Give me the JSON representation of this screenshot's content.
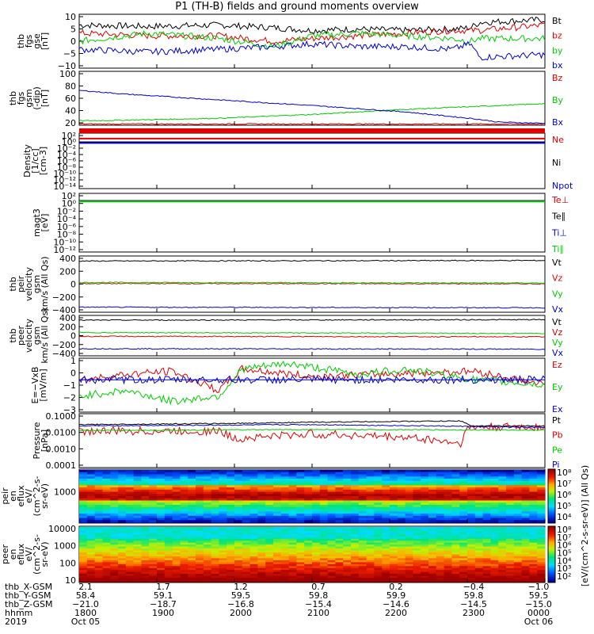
{
  "title": "P1 (TH-B) fields and ground moments overview",
  "colors": {
    "black": "#000000",
    "red": "#e00000",
    "green": "#00cc00",
    "blue": "#0000cc"
  },
  "chart_data": [
    {
      "type": "line",
      "panel": "bt-fgs",
      "ylabel": [
        "thb",
        "fgs",
        "gse",
        "[nT]"
      ],
      "ylim": [
        -10,
        10
      ],
      "yticks": [
        "10",
        "5",
        "0",
        "−5",
        "−10"
      ],
      "series": [
        {
          "name": "Bt",
          "color": "#000000",
          "x": [
            0,
            0.15,
            0.3,
            0.42,
            0.5,
            0.6,
            0.7,
            0.8,
            0.84,
            0.86,
            1.0
          ],
          "y": [
            6,
            5.5,
            6,
            5,
            4,
            4.5,
            4,
            4.5,
            5,
            7,
            8
          ]
        },
        {
          "name": "bz",
          "color": "#e00000",
          "x": [
            0,
            0.15,
            0.3,
            0.42,
            0.5,
            0.6,
            0.7,
            0.8,
            0.84,
            0.86,
            1.0
          ],
          "y": [
            3,
            2,
            2,
            0,
            1,
            2,
            3,
            4,
            4,
            4,
            6
          ]
        },
        {
          "name": "by",
          "color": "#00cc00",
          "x": [
            0,
            0.15,
            0.3,
            0.42,
            0.5,
            0.6,
            0.7,
            0.8,
            0.84,
            0.86,
            1.0
          ],
          "y": [
            0,
            3,
            1,
            -2,
            2,
            3,
            2,
            1,
            0,
            1,
            1
          ]
        },
        {
          "name": "bx",
          "color": "#0000cc",
          "x": [
            0,
            0.15,
            0.3,
            0.42,
            0.5,
            0.6,
            0.7,
            0.8,
            0.84,
            0.86,
            1.0
          ],
          "y": [
            -3,
            -4,
            -3,
            -2,
            -1,
            -2,
            -2,
            -3,
            -1,
            -6,
            -5
          ]
        }
      ]
    },
    {
      "type": "line",
      "panel": "b-gsm",
      "ylabel": [
        "thb",
        "fgs",
        "gsm",
        "(-dip)",
        "[nT]"
      ],
      "ylim": [
        15,
        100
      ],
      "yticks": [
        "100",
        "80",
        "60",
        "40",
        "20"
      ],
      "series": [
        {
          "name": "Bz",
          "color": "#e00000",
          "x": [
            0,
            1
          ],
          "y": [
            17,
            17
          ]
        },
        {
          "name": "By",
          "color": "#00cc00",
          "x": [
            0,
            0.1,
            0.3,
            0.5,
            0.7,
            0.9,
            1.0
          ],
          "y": [
            22,
            23,
            26,
            32,
            40,
            46,
            49
          ]
        },
        {
          "name": "Bx",
          "color": "#0000cc",
          "x": [
            0,
            0.1,
            0.3,
            0.5,
            0.7,
            0.85,
            0.9,
            1.0
          ],
          "y": [
            70,
            64,
            55,
            46,
            36,
            25,
            20,
            18
          ]
        }
      ]
    },
    {
      "type": "line",
      "panel": "density",
      "ylabel": [
        "Density",
        "[1/cc]",
        "[cm-3]"
      ],
      "log": true,
      "yticks": [
        "10²",
        "10⁰",
        "10⁻²",
        "10⁻⁴",
        "10⁻⁶",
        "10⁻⁸",
        "10⁻¹⁰",
        "10⁻¹²",
        "10⁻¹⁴"
      ],
      "series": [
        {
          "name": "Ne",
          "color": "#e00000",
          "x": [
            0,
            1
          ],
          "y": [
            6.5,
            6.5
          ]
        },
        {
          "name": "Ni",
          "color": "#000000",
          "x": [
            0,
            1
          ],
          "y": [
            0.5,
            0.5
          ]
        },
        {
          "name": "Npot",
          "color": "#0000cc",
          "x": [
            0,
            1
          ],
          "y": [
            0.3,
            0.3
          ]
        }
      ]
    },
    {
      "type": "line",
      "panel": "temperature",
      "ylabel": [
        "magt3",
        "[eV]"
      ],
      "log": true,
      "yticks": [
        "10²",
        "10⁰",
        "10⁻²",
        "10⁻⁴",
        "10⁻⁶",
        "10⁻⁸",
        "10⁻¹⁰",
        "10⁻¹²"
      ],
      "series": [
        {
          "name": "Te⊥",
          "color": "#e00000",
          "x": [
            0,
            1
          ],
          "y": [
            3.2,
            3.2
          ]
        },
        {
          "name": "Te∥",
          "color": "#000000",
          "x": [
            0,
            1
          ],
          "y": [
            3.0,
            3.0
          ]
        },
        {
          "name": "Ti⊥",
          "color": "#0000cc",
          "x": [
            0,
            1
          ],
          "y": [
            2.5,
            2.5
          ]
        },
        {
          "name": "Ti∥",
          "color": "#00cc00",
          "x": [
            0,
            1
          ],
          "y": [
            2.2,
            2.2
          ]
        }
      ]
    },
    {
      "type": "line",
      "panel": "pei-velocity",
      "ylabel": [
        "thb",
        "peir",
        "velocity",
        "gsm",
        "km/s (All Qs)"
      ],
      "ylim": [
        -500,
        500
      ],
      "yticks": [
        "400",
        "200",
        "0",
        "−200",
        "−400"
      ],
      "series": [
        {
          "name": "Vt",
          "color": "#000000",
          "x": [
            0,
            1
          ],
          "y": [
            410,
            420
          ]
        },
        {
          "name": "Vz",
          "color": "#e00000",
          "x": [
            0,
            1
          ],
          "y": [
            10,
            5
          ]
        },
        {
          "name": "Vy",
          "color": "#00cc00",
          "x": [
            0,
            1
          ],
          "y": [
            30,
            20
          ]
        },
        {
          "name": "Vx",
          "color": "#0000cc",
          "x": [
            0,
            1
          ],
          "y": [
            -410,
            -420
          ]
        }
      ]
    },
    {
      "type": "line",
      "panel": "pee-velocity",
      "ylabel": [
        "thb",
        "peer",
        "velocity",
        "gsm",
        "km/s (All Qs)"
      ],
      "ylim": [
        -450,
        400
      ],
      "yticks": [
        "400",
        "200",
        "0",
        "−200",
        "−400"
      ],
      "series": [
        {
          "name": "Vt",
          "color": "#000000",
          "x": [
            0,
            1
          ],
          "y": [
            300,
            310
          ]
        },
        {
          "name": "Vz",
          "color": "#e00000",
          "x": [
            0,
            1
          ],
          "y": [
            -40,
            -50
          ]
        },
        {
          "name": "Vy",
          "color": "#00cc00",
          "x": [
            0,
            1
          ],
          "y": [
            40,
            20
          ]
        },
        {
          "name": "Vx",
          "color": "#0000cc",
          "x": [
            0,
            1
          ],
          "y": [
            -300,
            -310
          ]
        }
      ]
    },
    {
      "type": "line",
      "panel": "efield",
      "ylabel": [
        "E=−VxB",
        "[mV/m]"
      ],
      "ylim": [
        -3,
        2
      ],
      "yticks": [
        "1",
        "0",
        "−1",
        "−2",
        "−3"
      ],
      "series": [
        {
          "name": "Ez",
          "color": "#e00000",
          "x": [
            0,
            0.1,
            0.2,
            0.3,
            0.35,
            0.5,
            0.7,
            0.85,
            1.0
          ],
          "y": [
            0,
            0.5,
            0.8,
            -1,
            1,
            0.3,
            0.6,
            0.8,
            -0.5
          ]
        },
        {
          "name": "Ey",
          "color": "#00cc00",
          "x": [
            0,
            0.1,
            0.2,
            0.3,
            0.35,
            0.45,
            0.6,
            0.7,
            0.85,
            1.0
          ],
          "y": [
            -1.5,
            -1,
            -2,
            -1.5,
            1,
            1.5,
            0.5,
            1,
            0,
            -0.5
          ]
        },
        {
          "name": "Ex",
          "color": "#0000cc",
          "x": [
            0,
            1
          ],
          "y": [
            0,
            0
          ]
        }
      ]
    },
    {
      "type": "line",
      "panel": "pressure",
      "ylabel": [
        "Pressure",
        "[nPa]"
      ],
      "log": true,
      "yticks": [
        "0.1000",
        "0.0100",
        "0.0010",
        "0.0001"
      ],
      "series": [
        {
          "name": "Pt",
          "color": "#000000",
          "x": [
            0,
            0.3,
            0.6,
            0.82,
            0.84,
            1.0
          ],
          "y": [
            0.03,
            0.035,
            0.045,
            0.05,
            0.025,
            0.025
          ]
        },
        {
          "name": "Pb",
          "color": "#e00000",
          "x": [
            0,
            0.3,
            0.33,
            0.5,
            0.7,
            0.82,
            0.84,
            1.0
          ],
          "y": [
            0.012,
            0.012,
            0.004,
            0.008,
            0.005,
            0.002,
            0.02,
            0.022
          ]
        },
        {
          "name": "Pe",
          "color": "#00cc00",
          "x": [
            0,
            0.5,
            1.0
          ],
          "y": [
            0.013,
            0.015,
            0.014
          ]
        },
        {
          "name": "Pi",
          "color": "#0000cc",
          "x": [
            0,
            0.5,
            1.0
          ],
          "y": [
            0.025,
            0.03,
            0.02
          ]
        }
      ]
    },
    {
      "type": "heatmap",
      "panel": "peir-spec",
      "ylabel": [
        "thb",
        "peir",
        "en",
        "eflux",
        "eV/",
        "(cm^2-s-",
        "sr-eV)"
      ],
      "yticks": [
        "1000"
      ],
      "colorbar_ticks": [
        "10⁸",
        "10⁷",
        "10⁶",
        "10⁵",
        "10⁴"
      ],
      "colorbar_label": "[eV/(cm^2-s-sr-eV)] (All Qs)"
    },
    {
      "type": "heatmap",
      "panel": "peer-spec",
      "ylabel": [
        "thb",
        "peer",
        "en",
        "eflux",
        "eV/",
        "(cm^2-s-",
        "sr-eV)"
      ],
      "yticks": [
        "10000",
        "1000",
        "100",
        "10"
      ],
      "colorbar_ticks": [
        "10⁸",
        "10⁷",
        "10⁶",
        "10⁵",
        "10⁴",
        "10³",
        "10²"
      ],
      "colorbar_label": "[eV/(cm^2-s-sr-eV)] (All Qs)"
    }
  ],
  "footer": {
    "rows": [
      {
        "label": "thb_X-GSM",
        "values": [
          "2.1",
          "1.7",
          "1.2",
          "0.7",
          "0.2",
          "−0.4",
          "−1.0"
        ]
      },
      {
        "label": "thb_Y-GSM",
        "values": [
          "58.4",
          "59.1",
          "59.5",
          "59.8",
          "59.9",
          "59.8",
          "59.5"
        ]
      },
      {
        "label": "thb_Z-GSM",
        "values": [
          "−21.0",
          "−18.7",
          "−16.8",
          "−15.4",
          "−14.6",
          "−14.5",
          "−15.0"
        ]
      },
      {
        "label": "hhmm",
        "values": [
          "1800",
          "1900",
          "2000",
          "2100",
          "2200",
          "2300",
          "0000"
        ]
      },
      {
        "label": "2019",
        "values": [
          "Oct 05",
          "",
          "",
          "",
          "",
          "",
          "Oct 06"
        ]
      }
    ]
  }
}
